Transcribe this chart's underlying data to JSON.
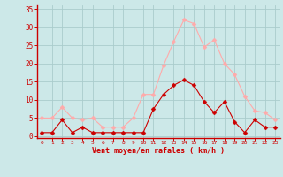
{
  "x": [
    0,
    1,
    2,
    3,
    4,
    5,
    6,
    7,
    8,
    9,
    10,
    11,
    12,
    13,
    14,
    15,
    16,
    17,
    18,
    19,
    20,
    21,
    22,
    23
  ],
  "y_rafales": [
    5,
    5,
    8,
    5,
    4.5,
    5,
    2.5,
    2.5,
    2.5,
    5,
    11.5,
    11.5,
    19.5,
    26,
    32,
    31,
    24.5,
    26.5,
    20,
    17,
    11,
    7,
    6.5,
    4.5
  ],
  "y_moyen": [
    1,
    1,
    4.5,
    1,
    2.5,
    1,
    1,
    1,
    1,
    1,
    1,
    7.5,
    11.5,
    14,
    15.5,
    14,
    9.5,
    6.5,
    9.5,
    4,
    1,
    4.5,
    2.5,
    2.5
  ],
  "color_rafales": "#ffaaaa",
  "color_moyen": "#cc0000",
  "background_color": "#cce8e8",
  "grid_color": "#aacccc",
  "xlabel": "Vent moyen/en rafales ( km/h )",
  "xlabel_color": "#cc0000",
  "yticks": [
    0,
    5,
    10,
    15,
    20,
    25,
    30,
    35
  ],
  "ylim": [
    -0.5,
    36
  ],
  "xlim": [
    -0.5,
    23.5
  ],
  "tick_color": "#cc0000",
  "marker_size": 2.5,
  "line_width": 0.8
}
